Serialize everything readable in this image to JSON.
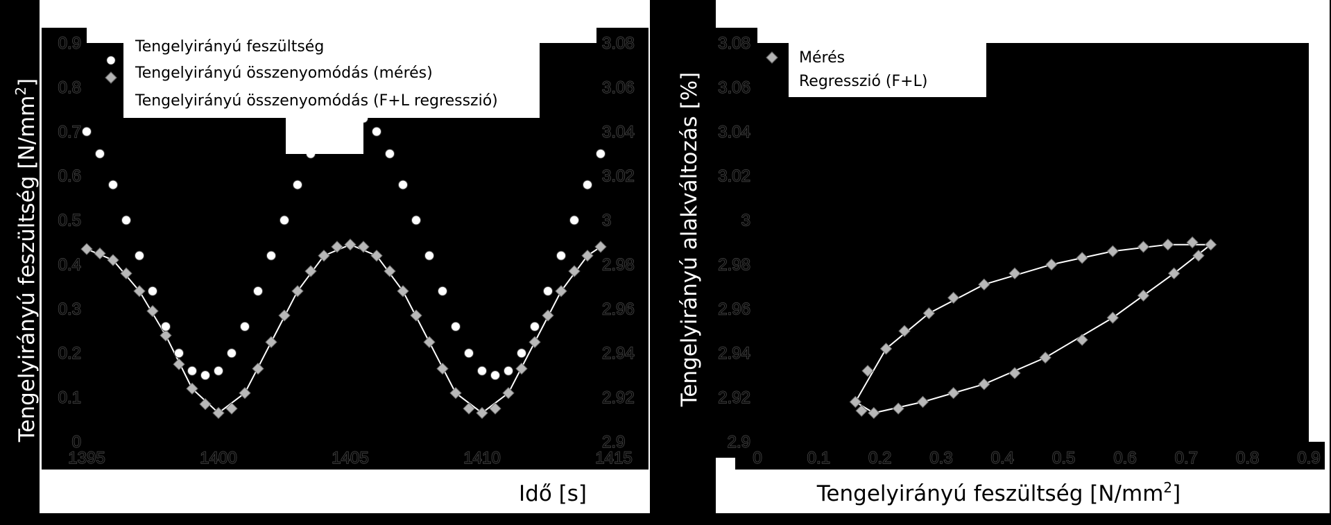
{
  "chart_data": [
    {
      "type": "scatter",
      "xlabel": "Idő [s]",
      "ylabel": "Tengelyirányú feszültség [N/mm",
      "ylabel_sup": "2",
      "ylabel_end": "]",
      "xlim": [
        1395,
        1415
      ],
      "ylim": [
        0,
        0.9
      ],
      "y2lim": [
        2.9,
        3.08
      ],
      "x_ticks": [
        "1395",
        "1400",
        "1405",
        "1410",
        "1415"
      ],
      "y_ticks": [
        "0",
        "0.1",
        "0.2",
        "0.3",
        "0.4",
        "0.5",
        "0.6",
        "0.7",
        "0.8",
        "0.9"
      ],
      "y2_ticks": [
        "2.9",
        "2.92",
        "2.94",
        "2.96",
        "2.98",
        "3",
        "3.02",
        "3.04",
        "3.06",
        "3.08"
      ],
      "legend": [
        "Tengelyirányú feszültség",
        "Tengelyirányú összenyomódás (mérés)",
        "Tengelyirányú összenyomódás (F+L regresszió)"
      ],
      "legend_position": "top-left",
      "series": [
        {
          "name": "Tengelyirányú feszültség",
          "axis": "left",
          "marker": "circle",
          "x": [
            1395.0,
            1395.5,
            1396.0,
            1396.5,
            1397.0,
            1397.5,
            1398.0,
            1398.5,
            1399.0,
            1399.5,
            1400.0,
            1400.5,
            1401.0,
            1401.5,
            1402.0,
            1402.5,
            1403.0,
            1403.5,
            1404.0,
            1404.5,
            1405.0,
            1405.5,
            1406.0,
            1406.5,
            1407.0,
            1407.5,
            1408.0,
            1408.5,
            1409.0,
            1409.5,
            1410.0,
            1410.5,
            1411.0,
            1411.5,
            1412.0,
            1412.5,
            1413.0,
            1413.5,
            1414.0,
            1414.5
          ],
          "y": [
            0.7,
            0.65,
            0.58,
            0.5,
            0.42,
            0.34,
            0.26,
            0.2,
            0.16,
            0.15,
            0.16,
            0.2,
            0.26,
            0.34,
            0.42,
            0.5,
            0.58,
            0.65,
            0.7,
            0.73,
            0.74,
            0.73,
            0.7,
            0.65,
            0.58,
            0.5,
            0.42,
            0.34,
            0.26,
            0.2,
            0.16,
            0.15,
            0.16,
            0.2,
            0.26,
            0.34,
            0.42,
            0.5,
            0.58,
            0.65
          ]
        },
        {
          "name": "Tengelyirányú összenyomódás (mérés)",
          "axis": "right",
          "marker": "diamond",
          "x": [
            1395.0,
            1395.5,
            1396.0,
            1396.5,
            1397.0,
            1397.5,
            1398.0,
            1398.5,
            1399.0,
            1399.5,
            1400.0,
            1400.5,
            1401.0,
            1401.5,
            1402.0,
            1402.5,
            1403.0,
            1403.5,
            1404.0,
            1404.5,
            1405.0,
            1405.5,
            1406.0,
            1406.5,
            1407.0,
            1407.5,
            1408.0,
            1408.5,
            1409.0,
            1409.5,
            1410.0,
            1410.5,
            1411.0,
            1411.5,
            1412.0,
            1412.5,
            1413.0,
            1413.5,
            1414.0,
            1414.5
          ],
          "y": [
            2.987,
            2.985,
            2.982,
            2.976,
            2.968,
            2.959,
            2.948,
            2.935,
            2.924,
            2.917,
            2.913,
            2.915,
            2.922,
            2.933,
            2.945,
            2.957,
            2.968,
            2.977,
            2.984,
            2.988,
            2.989,
            2.988,
            2.984,
            2.977,
            2.968,
            2.957,
            2.945,
            2.933,
            2.922,
            2.915,
            2.913,
            2.915,
            2.922,
            2.933,
            2.945,
            2.957,
            2.968,
            2.977,
            2.984,
            2.988
          ]
        },
        {
          "name": "Tengelyirányú összenyomódás (F+L regresszió)",
          "axis": "right",
          "marker": "line",
          "x": [
            1395.0,
            1396.0,
            1397.0,
            1398.0,
            1399.0,
            1400.0,
            1401.0,
            1402.0,
            1403.0,
            1404.0,
            1405.0,
            1406.0,
            1407.0,
            1408.0,
            1409.0,
            1410.0,
            1411.0,
            1412.0,
            1413.0,
            1414.0,
            1414.5
          ],
          "y": [
            2.987,
            2.982,
            2.968,
            2.948,
            2.924,
            2.913,
            2.922,
            2.945,
            2.968,
            2.984,
            2.989,
            2.984,
            2.968,
            2.945,
            2.922,
            2.913,
            2.922,
            2.945,
            2.968,
            2.984,
            2.988
          ]
        }
      ]
    },
    {
      "type": "scatter",
      "xlabel": "Tengelyirányú feszültség [N/mm",
      "xlabel_sup": "2",
      "xlabel_end": "]",
      "ylabel": "Tengelyirányú alakváltozás [%]",
      "xlim": [
        0,
        0.9
      ],
      "ylim": [
        2.9,
        3.08
      ],
      "x_ticks": [
        "0",
        "0.1",
        "0.2",
        "0.3",
        "0.4",
        "0.5",
        "0.6",
        "0.7",
        "0.8",
        "0.9"
      ],
      "y_ticks": [
        "2.9",
        "2.92",
        "2.94",
        "2.96",
        "2.98",
        "3",
        "3.02",
        "3.04",
        "3.06",
        "3.08"
      ],
      "legend": [
        "Mérés",
        "Regresszió (F+L)"
      ],
      "legend_position": "top-left",
      "series": [
        {
          "name": "Mérés",
          "marker": "diamond",
          "x": [
            0.16,
            0.18,
            0.21,
            0.24,
            0.28,
            0.32,
            0.37,
            0.42,
            0.48,
            0.53,
            0.58,
            0.63,
            0.67,
            0.71,
            0.74,
            0.72,
            0.68,
            0.63,
            0.58,
            0.53,
            0.47,
            0.42,
            0.37,
            0.32,
            0.27,
            0.23,
            0.19,
            0.17
          ],
          "y": [
            2.918,
            2.932,
            2.942,
            2.95,
            2.958,
            2.965,
            2.971,
            2.976,
            2.98,
            2.983,
            2.986,
            2.988,
            2.989,
            2.99,
            2.989,
            2.984,
            2.976,
            2.966,
            2.956,
            2.946,
            2.938,
            2.931,
            2.926,
            2.922,
            2.918,
            2.915,
            2.913,
            2.914
          ]
        },
        {
          "name": "Regresszió (F+L)",
          "marker": "line",
          "x": [
            0.16,
            0.21,
            0.28,
            0.37,
            0.48,
            0.58,
            0.67,
            0.74,
            0.68,
            0.58,
            0.47,
            0.37,
            0.27,
            0.19,
            0.16
          ],
          "y": [
            2.918,
            2.942,
            2.958,
            2.971,
            2.98,
            2.986,
            2.989,
            2.989,
            2.976,
            2.956,
            2.938,
            2.926,
            2.918,
            2.913,
            2.918
          ]
        }
      ]
    }
  ]
}
